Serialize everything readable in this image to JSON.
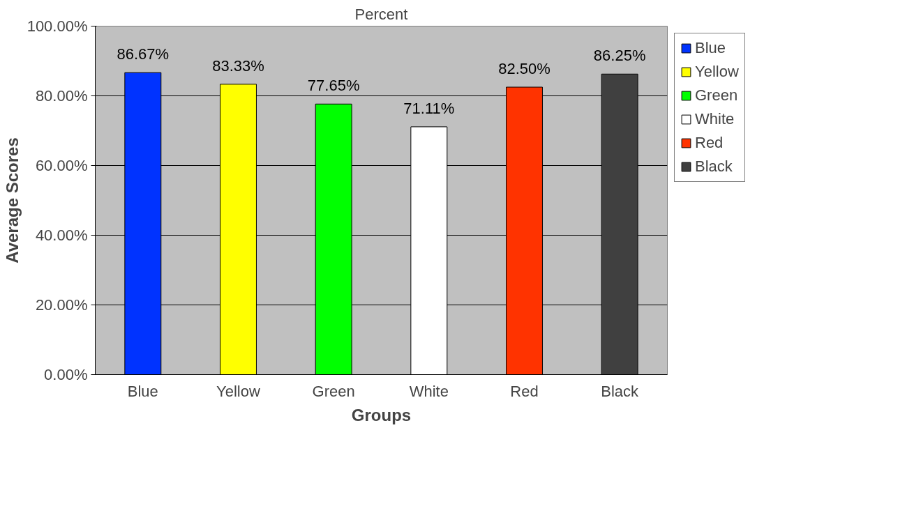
{
  "chart_data": {
    "type": "bar",
    "title": "Percent",
    "xlabel": "Groups",
    "ylabel": "Average Scores",
    "categories": [
      "Blue",
      "Yellow",
      "Green",
      "White",
      "Red",
      "Black"
    ],
    "series": [
      {
        "name": "Blue",
        "color": "#0033ff",
        "values": [
          86.67,
          null,
          null,
          null,
          null,
          null
        ],
        "value_labels": [
          "86.67%",
          null,
          null,
          null,
          null,
          null
        ]
      },
      {
        "name": "Yellow",
        "color": "#ffff00",
        "values": [
          null,
          83.33,
          null,
          null,
          null,
          null
        ],
        "value_labels": [
          null,
          "83.33%",
          null,
          null,
          null,
          null
        ]
      },
      {
        "name": "Green",
        "color": "#00ff00",
        "values": [
          null,
          null,
          77.65,
          null,
          null,
          null
        ],
        "value_labels": [
          null,
          null,
          "77.65%",
          null,
          null,
          null
        ]
      },
      {
        "name": "White",
        "color": "#ffffff",
        "values": [
          null,
          null,
          null,
          71.11,
          null,
          null
        ],
        "value_labels": [
          null,
          null,
          null,
          "71.11%",
          null,
          null
        ]
      },
      {
        "name": "Red",
        "color": "#ff3300",
        "values": [
          null,
          null,
          null,
          null,
          82.5,
          null
        ],
        "value_labels": [
          null,
          null,
          null,
          null,
          "82.50%",
          null
        ]
      },
      {
        "name": "Black",
        "color": "#404040",
        "values": [
          null,
          null,
          null,
          null,
          null,
          86.25
        ],
        "value_labels": [
          null,
          null,
          null,
          null,
          null,
          "86.25%"
        ]
      }
    ],
    "ylim": [
      0,
      100
    ],
    "yticks": [
      {
        "value": 0,
        "label": "0.00%"
      },
      {
        "value": 20,
        "label": "20.00%"
      },
      {
        "value": 40,
        "label": "40.00%"
      },
      {
        "value": 60,
        "label": "60.00%"
      },
      {
        "value": 80,
        "label": "80.00%"
      },
      {
        "value": 100,
        "label": "100.00%"
      }
    ],
    "grid": "y",
    "legend": "right"
  }
}
